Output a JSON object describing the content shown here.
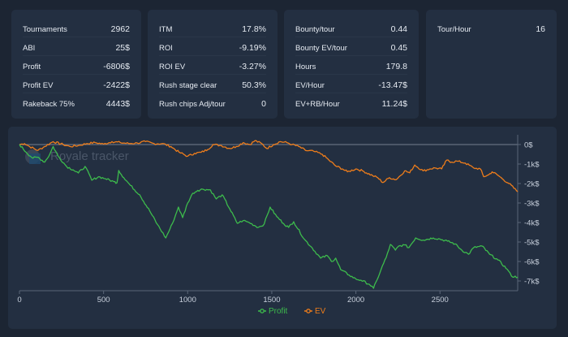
{
  "stats_cards": [
    {
      "rows": [
        {
          "label": "Tournaments",
          "value": "2962"
        },
        {
          "label": "ABI",
          "value": "25$"
        },
        {
          "label": "Profit",
          "value": "-6806$"
        },
        {
          "label": "Profit EV",
          "value": "-2422$"
        },
        {
          "label": "Rakeback 75%",
          "value": "4443$"
        }
      ]
    },
    {
      "rows": [
        {
          "label": "ITM",
          "value": "17.8%"
        },
        {
          "label": "ROI",
          "value": "-9.19%"
        },
        {
          "label": "ROI EV",
          "value": "-3.27%"
        },
        {
          "label": "Rush stage clear",
          "value": "50.3%"
        },
        {
          "label": "Rush chips Adj/tour",
          "value": "0"
        }
      ]
    },
    {
      "rows": [
        {
          "label": "Bounty/tour",
          "value": "0.44"
        },
        {
          "label": "Bounty EV/tour",
          "value": "0.45"
        },
        {
          "label": "Hours",
          "value": "179.8"
        },
        {
          "label": "EV/Hour",
          "value": "-13.47$"
        },
        {
          "label": "EV+RB/Hour",
          "value": "11.24$"
        }
      ]
    },
    {
      "rows": [
        {
          "label": "Tour/Hour",
          "value": "16"
        }
      ]
    }
  ],
  "watermark": "Royale tracker",
  "colors": {
    "background": "#1c2533",
    "card": "#232f41",
    "profit": "#3dbb4c",
    "ev": "#ee7d1b",
    "axis": "#5a6678",
    "tick_text": "#c8d0dc"
  },
  "chart_data": {
    "type": "line",
    "title": "",
    "xlabel": "",
    "ylabel": "",
    "xlim": [
      0,
      2962
    ],
    "ylim": [
      -7000,
      0
    ],
    "y_axis_side": "right",
    "x_ticks": [
      0,
      500,
      1000,
      1500,
      2000,
      2500
    ],
    "x_tick_labels": [
      "0",
      "500",
      "1000",
      "1500",
      "2000",
      "2500"
    ],
    "y_ticks": [
      0,
      -1000,
      -2000,
      -3000,
      -4000,
      -5000,
      -6000,
      -7000
    ],
    "y_tick_labels": [
      "0$",
      "-1k$",
      "-2k$",
      "-3k$",
      "-4k$",
      "-5k$",
      "-6k$",
      "-7k$"
    ],
    "grid": false,
    "legend_position": "bottom-center",
    "series": [
      {
        "name": "Profit",
        "color": "#3dbb4c",
        "x": [
          0,
          40,
          80,
          110,
          150,
          180,
          200,
          230,
          280,
          320,
          350,
          390,
          430,
          470,
          510,
          560,
          580,
          590,
          620,
          660,
          715,
          775,
          820,
          870,
          910,
          945,
          970,
          1000,
          1030,
          1060,
          1090,
          1135,
          1170,
          1205,
          1250,
          1295,
          1330,
          1365,
          1420,
          1455,
          1490,
          1530,
          1570,
          1600,
          1630,
          1695,
          1740,
          1790,
          1830,
          1855,
          1880,
          1910,
          1960,
          2000,
          2030,
          2080,
          2105,
          2125,
          2150,
          2180,
          2205,
          2235,
          2255,
          2290,
          2315,
          2355,
          2400,
          2460,
          2500,
          2545,
          2590,
          2630,
          2670,
          2700,
          2750,
          2795,
          2845,
          2900,
          2925,
          2962
        ],
        "y": [
          0,
          -400,
          -700,
          -650,
          -900,
          -500,
          -100,
          -600,
          -1120,
          -1300,
          -1460,
          -1120,
          -1830,
          -1650,
          -1750,
          -1900,
          -1960,
          -1330,
          -1700,
          -2100,
          -2580,
          -3420,
          -4100,
          -4790,
          -4040,
          -3210,
          -3750,
          -3000,
          -2500,
          -2350,
          -2290,
          -2330,
          -2790,
          -2580,
          -3300,
          -4040,
          -3900,
          -4000,
          -4250,
          -4080,
          -3210,
          -3700,
          -4050,
          -4250,
          -3960,
          -4875,
          -5300,
          -5830,
          -5700,
          -6000,
          -5830,
          -6420,
          -6700,
          -6900,
          -6960,
          -7170,
          -7375,
          -6960,
          -6400,
          -5800,
          -5125,
          -5420,
          -5210,
          -5150,
          -5290,
          -4790,
          -4900,
          -4790,
          -4850,
          -4960,
          -5100,
          -5420,
          -5630,
          -5290,
          -5210,
          -5630,
          -5920,
          -6400,
          -6750,
          -6806
        ]
      },
      {
        "name": "EV",
        "color": "#ee7d1b",
        "x": [
          0,
          30,
          60,
          110,
          150,
          200,
          260,
          300,
          350,
          400,
          450,
          500,
          550,
          600,
          650,
          700,
          750,
          800,
          850,
          900,
          950,
          1000,
          1040,
          1080,
          1120,
          1150,
          1200,
          1250,
          1290,
          1330,
          1370,
          1400,
          1440,
          1470,
          1510,
          1550,
          1590,
          1620,
          1660,
          1700,
          1750,
          1800,
          1840,
          1880,
          1920,
          1950,
          2000,
          2040,
          2100,
          2130,
          2160,
          2200,
          2240,
          2290,
          2320,
          2350,
          2400,
          2440,
          2470,
          2510,
          2540,
          2570,
          2600,
          2650,
          2700,
          2740,
          2760,
          2790,
          2810,
          2840,
          2870,
          2910,
          2962
        ],
        "y": [
          0,
          50,
          -100,
          -300,
          -100,
          150,
          0,
          -100,
          -50,
          50,
          100,
          20,
          150,
          100,
          50,
          80,
          150,
          50,
          50,
          -100,
          -400,
          -600,
          -450,
          -400,
          -250,
          0,
          -50,
          -200,
          -100,
          100,
          0,
          200,
          50,
          -200,
          0,
          150,
          100,
          0,
          -100,
          -300,
          -350,
          -500,
          -800,
          -1100,
          -1250,
          -1400,
          -1250,
          -1350,
          -1600,
          -1700,
          -1950,
          -1700,
          -1800,
          -1350,
          -1450,
          -1050,
          -1350,
          -1250,
          -1200,
          -1250,
          -800,
          -900,
          -850,
          -950,
          -1200,
          -1250,
          -1650,
          -1550,
          -1400,
          -1550,
          -1750,
          -2000,
          -2422
        ]
      }
    ]
  }
}
